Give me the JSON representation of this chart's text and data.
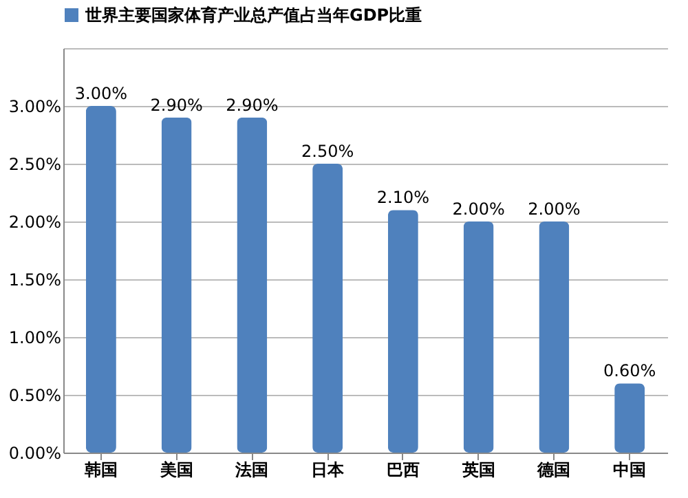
{
  "chart_data": {
    "type": "bar",
    "categories": [
      "韩国",
      "美国",
      "法国",
      "日本",
      "巴西",
      "英国",
      "德国",
      "中国"
    ],
    "series": [
      {
        "name": "世界主要国家体育产业总产值占当年GDP比重",
        "color": "#4f81bd",
        "values": [
          3.0,
          2.9,
          2.9,
          2.5,
          2.1,
          2.0,
          2.0,
          0.6
        ],
        "value_labels": [
          "3.00%",
          "2.90%",
          "2.90%",
          "2.50%",
          "2.10%",
          "2.00%",
          "2.00%",
          "0.60%"
        ]
      }
    ],
    "ylim": [
      0,
      3.5
    ],
    "yticks": [
      {
        "value": 0,
        "label": "0.00%"
      },
      {
        "value": 0.5,
        "label": "0.50%"
      },
      {
        "value": 1.0,
        "label": "1.00%"
      },
      {
        "value": 1.5,
        "label": "1.50%"
      },
      {
        "value": 2.0,
        "label": "2.00%"
      },
      {
        "value": 2.5,
        "label": "2.50%"
      },
      {
        "value": 3.0,
        "label": "3.00%"
      },
      {
        "value": 3.5,
        "label": null
      }
    ],
    "grid": "y",
    "legend": "top"
  }
}
